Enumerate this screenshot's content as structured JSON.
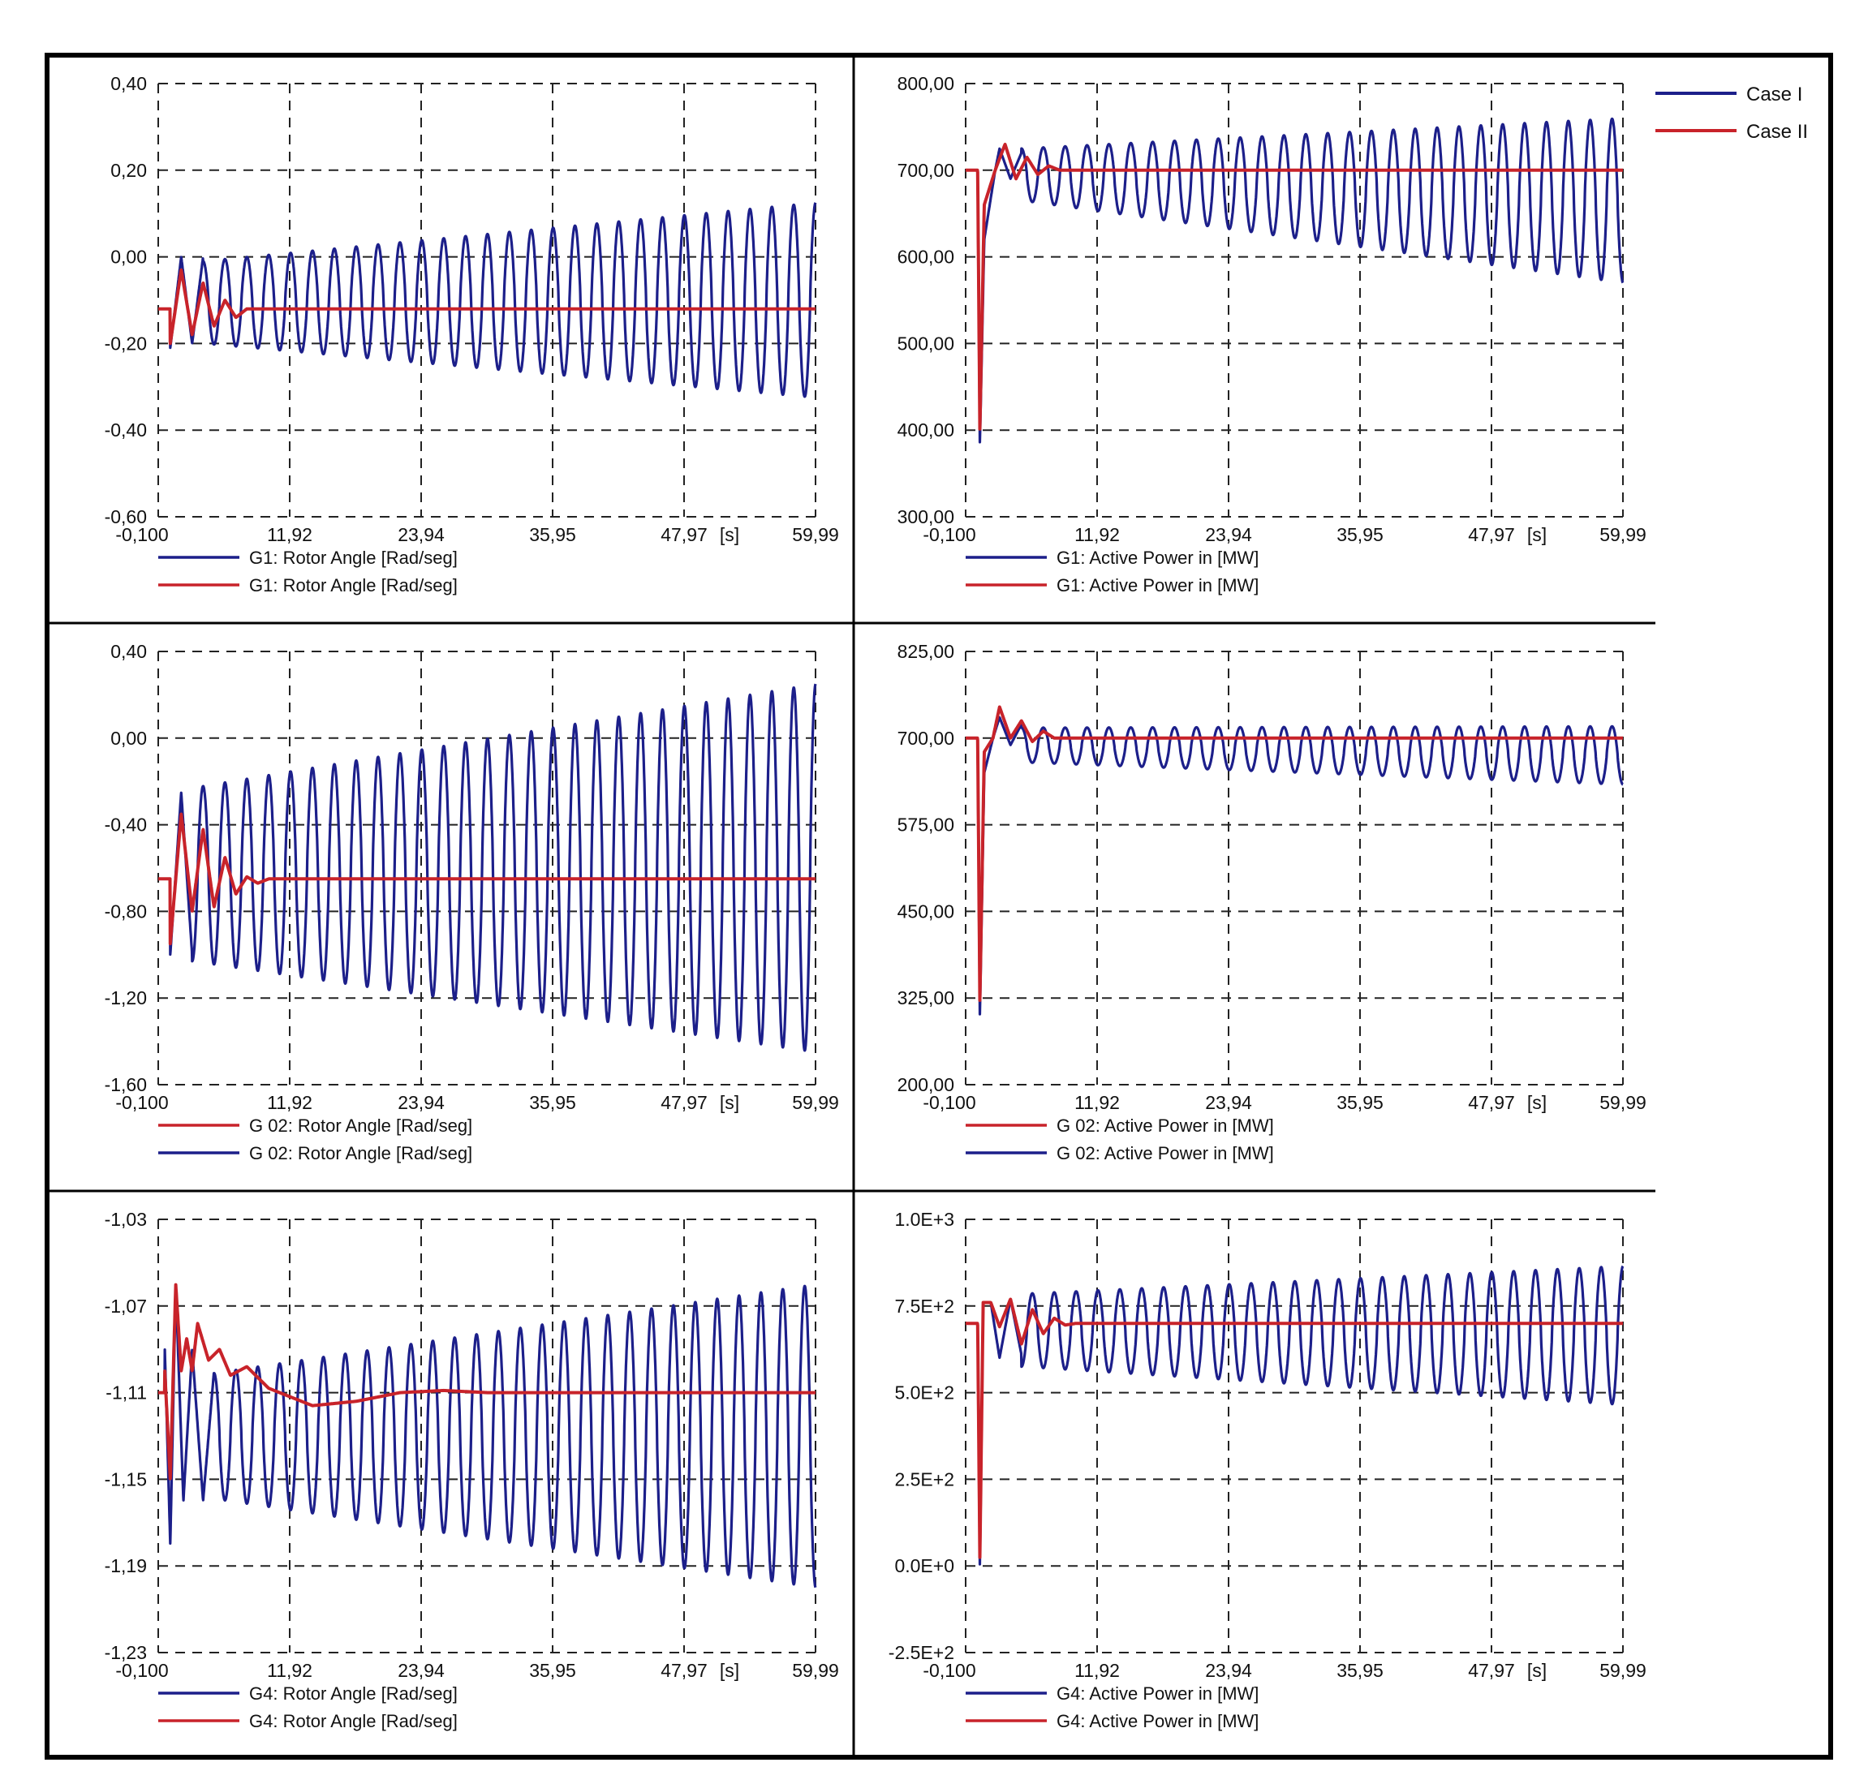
{
  "colors": {
    "case1": "#1c1f8a",
    "case2": "#c8232a",
    "grid": "#222222",
    "frame": "#000000"
  },
  "legend": {
    "case1": "Case I",
    "case2": "Case II"
  },
  "chart_data": [
    {
      "type": "line",
      "id": "g1-rotor",
      "xlim": [
        -0.1,
        59.99
      ],
      "xticks": [
        "-0,100",
        "11,92",
        "23,94",
        "35,95",
        "47,97",
        "59,99"
      ],
      "xunit": "[s]",
      "ylim": [
        -0.6,
        0.4
      ],
      "yticks": [
        "0,40",
        "0,20",
        "0,00",
        "-0,20",
        "-0,40",
        "-0,60"
      ],
      "legend": [
        "G1: Rotor Angle [Rad/seg]",
        "G1: Rotor Angle [Rad/seg]"
      ],
      "legend_colors": [
        "case1",
        "case2"
      ],
      "series": [
        {
          "name": "Case I",
          "kind": "osc",
          "base": -0.12,
          "step_at": 1.0,
          "amp0": 0.095,
          "amp1": 0.225,
          "center0": -0.105,
          "center1": -0.1,
          "period": 2.0,
          "transient": [
            [
              1.0,
              -0.21
            ],
            [
              2.0,
              0.0
            ],
            [
              3.0,
              -0.2
            ],
            [
              4.0,
              0.0
            ]
          ]
        },
        {
          "name": "Case II",
          "kind": "damp",
          "base": -0.12,
          "final": -0.12,
          "step_at": 1.0,
          "points": [
            [
              1.0,
              -0.2
            ],
            [
              2.0,
              -0.03
            ],
            [
              3.0,
              -0.18
            ],
            [
              4.0,
              -0.06
            ],
            [
              5.0,
              -0.16
            ],
            [
              6.0,
              -0.1
            ],
            [
              7.0,
              -0.14
            ],
            [
              8.0,
              -0.12
            ]
          ]
        }
      ]
    },
    {
      "type": "line",
      "id": "g1-power",
      "xlim": [
        -0.1,
        59.99
      ],
      "xticks": [
        "-0,100",
        "11,92",
        "23,94",
        "35,95",
        "47,97",
        "59,99"
      ],
      "xunit": "[s]",
      "ylim": [
        300,
        800
      ],
      "yticks": [
        "800,00",
        "700,00",
        "600,00",
        "500,00",
        "400,00",
        "300,00"
      ],
      "legend": [
        "G1: Active Power in [MW]",
        "G1: Active Power in [MW]"
      ],
      "legend_colors": [
        "case1",
        "case2"
      ],
      "series": [
        {
          "name": "Case I",
          "kind": "osc",
          "base": 700,
          "step_at": 1.0,
          "spike": [
            [
              1.0,
              700
            ],
            [
              1.2,
              385
            ],
            [
              1.6,
              620
            ],
            [
              2.6,
              700
            ]
          ],
          "amp0": 30,
          "amp1": 95,
          "center0": 695,
          "center1": 665,
          "period": 2.0,
          "transient": [
            [
              3.0,
              725
            ],
            [
              4.0,
              690
            ],
            [
              5.0,
              720
            ]
          ]
        },
        {
          "name": "Case II",
          "kind": "damp",
          "base": 700,
          "final": 700,
          "step_at": 1.0,
          "spike": [
            [
              1.0,
              700
            ],
            [
              1.2,
              400
            ],
            [
              1.6,
              660
            ]
          ],
          "points": [
            [
              2.6,
              700
            ],
            [
              3.5,
              730
            ],
            [
              4.5,
              690
            ],
            [
              5.5,
              715
            ],
            [
              6.5,
              695
            ],
            [
              7.5,
              705
            ],
            [
              8.5,
              700
            ]
          ]
        }
      ]
    },
    {
      "type": "line",
      "id": "g2-rotor",
      "xlim": [
        -0.1,
        59.99
      ],
      "xticks": [
        "-0,100",
        "11,92",
        "23,94",
        "35,95",
        "47,97",
        "59,99"
      ],
      "xunit": "[s]",
      "ylim": [
        -1.6,
        0.4
      ],
      "yticks": [
        "0,40",
        "0,00",
        "-0,40",
        "-0,80",
        "-1,20",
        "-1,60"
      ],
      "legend": [
        "G 02: Rotor Angle [Rad/seg]",
        "G 02: Rotor Angle [Rad/seg]"
      ],
      "legend_colors": [
        "case2",
        "case1"
      ],
      "series": [
        {
          "name": "Case I",
          "kind": "osc",
          "base": -0.65,
          "step_at": 1.0,
          "amp0": 0.4,
          "amp1": 0.85,
          "center0": -0.63,
          "center1": -0.6,
          "period": 2.0,
          "transient": [
            [
              1.0,
              -1.0
            ],
            [
              2.0,
              -0.25
            ],
            [
              3.0,
              -1.0
            ]
          ]
        },
        {
          "name": "Case II",
          "kind": "damp",
          "base": -0.65,
          "final": -0.65,
          "step_at": 1.0,
          "points": [
            [
              1.0,
              -0.95
            ],
            [
              2.0,
              -0.35
            ],
            [
              3.0,
              -0.8
            ],
            [
              4.0,
              -0.42
            ],
            [
              5.0,
              -0.78
            ],
            [
              6.0,
              -0.55
            ],
            [
              7.0,
              -0.72
            ],
            [
              8.0,
              -0.64
            ],
            [
              9.0,
              -0.67
            ],
            [
              10.0,
              -0.65
            ]
          ]
        }
      ]
    },
    {
      "type": "line",
      "id": "g2-power",
      "xlim": [
        -0.1,
        59.99
      ],
      "xticks": [
        "-0,100",
        "11,92",
        "23,94",
        "35,95",
        "47,97",
        "59,99"
      ],
      "xunit": "[s]",
      "ylim": [
        200,
        825
      ],
      "yticks": [
        "825,00",
        "700,00",
        "575,00",
        "450,00",
        "325,00",
        "200,00"
      ],
      "legend": [
        "G 02:  Active Power in [MW]",
        "G 02:  Active Power in [MW]"
      ],
      "legend_colors": [
        "case2",
        "case1"
      ],
      "series": [
        {
          "name": "Case I",
          "kind": "osc",
          "base": 700,
          "step_at": 1.0,
          "spike": [
            [
              1.0,
              700
            ],
            [
              1.2,
              300
            ],
            [
              1.6,
              650
            ],
            [
              2.4,
              700
            ]
          ],
          "amp0": 25,
          "amp1": 42,
          "center0": 690,
          "center1": 675,
          "period": 2.0,
          "transient": [
            [
              3.0,
              730
            ],
            [
              4.0,
              690
            ],
            [
              5.0,
              720
            ]
          ]
        },
        {
          "name": "Case II",
          "kind": "damp",
          "base": 700,
          "final": 700,
          "step_at": 1.0,
          "spike": [
            [
              1.0,
              700
            ],
            [
              1.2,
              320
            ],
            [
              1.6,
              680
            ]
          ],
          "points": [
            [
              2.4,
              700
            ],
            [
              3.0,
              745
            ],
            [
              4.0,
              700
            ],
            [
              5.0,
              725
            ],
            [
              6.0,
              695
            ],
            [
              7.0,
              710
            ],
            [
              8.0,
              700
            ]
          ]
        }
      ]
    },
    {
      "type": "line",
      "id": "g4-rotor",
      "xlim": [
        -0.1,
        59.99
      ],
      "xticks": [
        "-0,100",
        "11,92",
        "23,94",
        "35,95",
        "47,97",
        "59,99"
      ],
      "xunit": "[s]",
      "ylim": [
        -1.23,
        -1.03
      ],
      "yticks": [
        "-1,03",
        "-1,07",
        "-1,11",
        "-1,15",
        "-1,19",
        "-1,23"
      ],
      "legend": [
        "G4:  Rotor Angle [Rad/seg]",
        "G4:  Rotor Angle [Rad/seg]"
      ],
      "legend_colors": [
        "case1",
        "case2"
      ],
      "series": [
        {
          "name": "Case I",
          "kind": "osc",
          "base": -1.11,
          "step_at": 0.5,
          "amp0": 0.029,
          "amp1": 0.07,
          "center0": -1.13,
          "center1": -1.13,
          "period": 2.0,
          "transient": [
            [
              0.5,
              -1.09
            ],
            [
              1.0,
              -1.18
            ],
            [
              1.5,
              -1.06
            ],
            [
              2.2,
              -1.16
            ],
            [
              3.0,
              -1.09
            ],
            [
              4.0,
              -1.16
            ],
            [
              5.0,
              -1.1
            ]
          ]
        },
        {
          "name": "Case II",
          "kind": "damp",
          "base": -1.11,
          "final": -1.11,
          "step_at": 0.5,
          "points": [
            [
              0.5,
              -1.1
            ],
            [
              1.0,
              -1.15
            ],
            [
              1.5,
              -1.06
            ],
            [
              2.0,
              -1.1
            ],
            [
              2.5,
              -1.085
            ],
            [
              3.0,
              -1.1
            ],
            [
              3.5,
              -1.078
            ],
            [
              4.5,
              -1.095
            ],
            [
              5.5,
              -1.09
            ],
            [
              6.5,
              -1.102
            ],
            [
              8.0,
              -1.098
            ],
            [
              10.0,
              -1.108
            ],
            [
              14.0,
              -1.116
            ],
            [
              18.0,
              -1.114
            ],
            [
              22.0,
              -1.11
            ],
            [
              26.0,
              -1.109
            ],
            [
              30.0,
              -1.11
            ]
          ]
        }
      ]
    },
    {
      "type": "line",
      "id": "g4-power",
      "xlim": [
        -0.1,
        59.99
      ],
      "xticks": [
        "-0,100",
        "11,92",
        "23,94",
        "35,95",
        "47,97",
        "59,99"
      ],
      "xunit": "[s]",
      "ylim": [
        -250,
        1000
      ],
      "yticks": [
        "1.0E+3",
        "7.5E+2",
        "5.0E+2",
        "2.5E+2",
        "0.0E+0",
        "-2.5E+2"
      ],
      "legend": [
        "G4:  Active Power in [MW]",
        "G4:  Active Power in [MW]"
      ],
      "legend_colors": [
        "case1",
        "case2"
      ],
      "series": [
        {
          "name": "Case I",
          "kind": "osc",
          "base": 700,
          "step_at": 1.0,
          "spike": [
            [
              1.0,
              700
            ],
            [
              1.2,
              0
            ],
            [
              1.5,
              760
            ],
            [
              2.2,
              760
            ]
          ],
          "amp0": 105,
          "amp1": 200,
          "center0": 680,
          "center1": 665,
          "period": 2.0,
          "transient": [
            [
              3.0,
              600
            ],
            [
              4.0,
              770
            ],
            [
              5.0,
              610
            ]
          ]
        },
        {
          "name": "Case II",
          "kind": "damp",
          "base": 700,
          "final": 700,
          "step_at": 1.0,
          "spike": [
            [
              1.0,
              700
            ],
            [
              1.2,
              20
            ],
            [
              1.5,
              760
            ]
          ],
          "points": [
            [
              2.2,
              760
            ],
            [
              3.0,
              690
            ],
            [
              4.0,
              770
            ],
            [
              5.0,
              640
            ],
            [
              6.0,
              740
            ],
            [
              7.0,
              670
            ],
            [
              8.0,
              715
            ],
            [
              9.0,
              695
            ],
            [
              10.0,
              700
            ]
          ]
        }
      ]
    }
  ]
}
